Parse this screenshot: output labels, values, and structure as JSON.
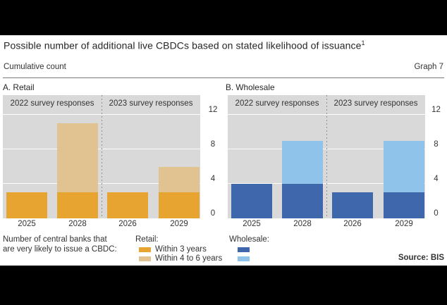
{
  "page": {
    "title": "Possible number of additional live CBDCs based on stated likelihood of issuance",
    "footnote_marker": "1",
    "subtitle_left": "Cumulative count",
    "subtitle_right": "Graph 7"
  },
  "colors": {
    "retail_within_3y": "#E8A431",
    "retail_within_4_6y": "#E0C391",
    "wholesale_within_3y": "#3F68AC",
    "wholesale_within_4_6y": "#8FC3EA",
    "plot_background": "#D9D9D9",
    "gridline": "#FFFFFF"
  },
  "chart_data": [
    {
      "type": "bar",
      "panel": "A",
      "title": "A. Retail",
      "section_labels": [
        "2022 survey responses",
        "2023 survey responses"
      ],
      "categories": [
        "2025",
        "2028",
        "2026",
        "2029"
      ],
      "series": [
        {
          "name": "Within 3 years",
          "color_key": "retail_within_3y",
          "values": [
            3,
            3,
            3,
            3
          ]
        },
        {
          "name": "Within 4 to 6 years",
          "color_key": "retail_within_4_6y",
          "values": [
            0,
            8,
            0,
            3
          ]
        }
      ],
      "stacked": true,
      "totals": [
        3,
        11,
        3,
        6
      ],
      "ylim": [
        0,
        14.3
      ],
      "yticks": [
        0,
        4,
        8,
        12
      ],
      "yaxis_side": "right",
      "grid": true
    },
    {
      "type": "bar",
      "panel": "B",
      "title": "B. Wholesale",
      "section_labels": [
        "2022 survey responses",
        "2023 survey responses"
      ],
      "categories": [
        "2025",
        "2028",
        "2026",
        "2029"
      ],
      "series": [
        {
          "name": "Within 3 years",
          "color_key": "wholesale_within_3y",
          "values": [
            4,
            4,
            3,
            3
          ]
        },
        {
          "name": "Within 4 to 6 years",
          "color_key": "wholesale_within_4_6y",
          "values": [
            0,
            5,
            0,
            6
          ]
        }
      ],
      "stacked": true,
      "totals": [
        4,
        9,
        3,
        9
      ],
      "ylim": [
        0,
        14.3
      ],
      "yticks": [
        0,
        4,
        8,
        12
      ],
      "yaxis_side": "right",
      "grid": true
    }
  ],
  "footer": {
    "note_line1": "Number of central banks that",
    "note_line2": "are very likely to issue a CBDC:",
    "retail_legend": {
      "title": "Retail:",
      "items": [
        "Within 3 years",
        "Within 4 to 6 years"
      ]
    },
    "wholesale_legend": {
      "title": "Wholesale:"
    },
    "source": "Source: BIS"
  }
}
